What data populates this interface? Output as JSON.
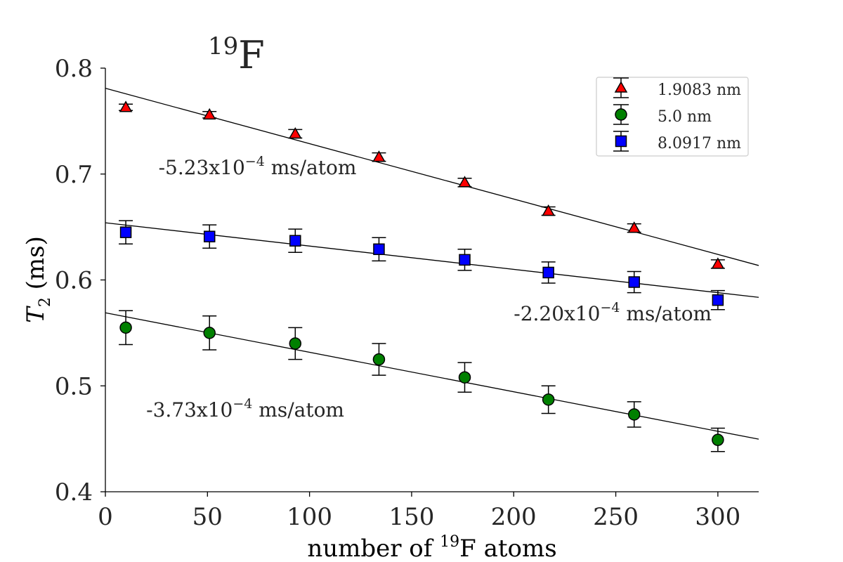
{
  "chart_data": {
    "type": "scatter",
    "title": {
      "sup": "19",
      "main": "F"
    },
    "xlabel": {
      "pre": "number of ",
      "sup": "19",
      "post": "F atoms"
    },
    "ylabel": {
      "italic": "T",
      "sub": "2",
      "post": " (ms)"
    },
    "xlim": [
      0,
      320
    ],
    "ylim": [
      0.4,
      0.8
    ],
    "xticks": [
      0,
      50,
      100,
      150,
      200,
      250,
      300
    ],
    "xtick_labels": [
      "0",
      "50",
      "100",
      "150",
      "200",
      "250",
      "300"
    ],
    "yticks": [
      0.4,
      0.5,
      0.6,
      0.7,
      0.8
    ],
    "ytick_labels": [
      "0.4",
      "0.5",
      "0.6",
      "0.7",
      "0.8"
    ],
    "grid": false,
    "legend_position": "top-right",
    "series": [
      {
        "name": "1.9083 nm",
        "marker": "triangle",
        "color": "#ff0000",
        "x": [
          10,
          51,
          93,
          134,
          176,
          217,
          259,
          300
        ],
        "y": [
          0.763,
          0.756,
          0.738,
          0.716,
          0.692,
          0.665,
          0.649,
          0.615
        ],
        "err": [
          0.003,
          0.003,
          0.004,
          0.004,
          0.004,
          0.004,
          0.004,
          0.004
        ],
        "fit": {
          "intercept": 0.781,
          "slope": -0.000523
        }
      },
      {
        "name": "5.0 nm",
        "marker": "circle",
        "color": "#008000",
        "x": [
          10,
          51,
          93,
          134,
          176,
          217,
          259,
          300
        ],
        "y": [
          0.555,
          0.55,
          0.54,
          0.525,
          0.508,
          0.487,
          0.473,
          0.449
        ],
        "err": [
          0.016,
          0.016,
          0.015,
          0.015,
          0.014,
          0.013,
          0.012,
          0.011
        ],
        "fit": {
          "intercept": 0.569,
          "slope": -0.000373
        }
      },
      {
        "name": "8.0917 nm",
        "marker": "square",
        "color": "#0000ff",
        "x": [
          10,
          51,
          93,
          134,
          176,
          217,
          259,
          300
        ],
        "y": [
          0.645,
          0.641,
          0.637,
          0.629,
          0.619,
          0.607,
          0.598,
          0.581
        ],
        "err": [
          0.011,
          0.011,
          0.011,
          0.011,
          0.01,
          0.01,
          0.01,
          0.009
        ],
        "fit": {
          "intercept": 0.654,
          "slope": -0.00022
        }
      }
    ],
    "annotations": [
      {
        "pre": "-5.23x10",
        "sup": "−4",
        "post": " ms/atom",
        "x": 26,
        "y": 0.7
      },
      {
        "pre": "-2.20x10",
        "sup": "−4",
        "post": " ms/atom",
        "x": 200,
        "y": 0.562
      },
      {
        "pre": "-3.73x10",
        "sup": "−4",
        "post": " ms/atom",
        "x": 20,
        "y": 0.471
      }
    ]
  }
}
